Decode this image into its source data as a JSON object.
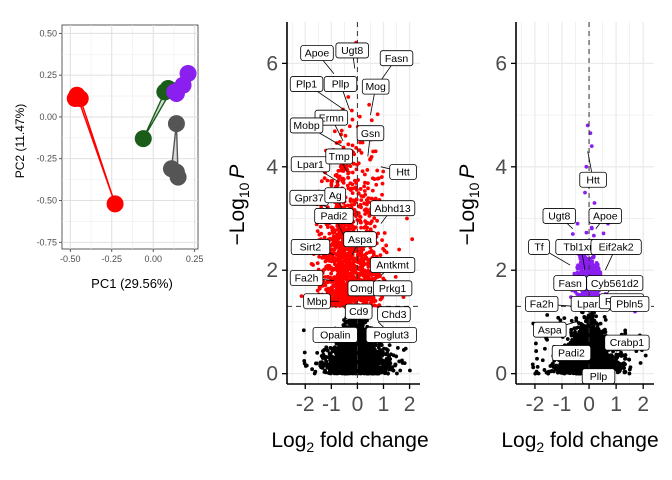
{
  "chart_data": [
    {
      "type": "scatter",
      "name": "pca",
      "xlabel": "PC1 (29.56%)",
      "ylabel": "PC2 (11.47%)",
      "xlim": [
        -0.55,
        0.27
      ],
      "ylim": [
        -0.79,
        0.55
      ],
      "xticks": [
        -0.5,
        -0.25,
        0.0,
        0.25
      ],
      "xtick_labels": [
        "-0.50",
        "-0.25",
        "0.00",
        "0.25"
      ],
      "yticks": [
        0.5,
        0.25,
        0.0,
        -0.25,
        -0.5,
        -0.75
      ],
      "ytick_labels": [
        "0.50",
        "0.25",
        "0.00",
        "-0.25",
        "-0.50",
        "-0.75"
      ],
      "grid": true,
      "groups": [
        {
          "color": "#ff0000",
          "points": [
            [
              -0.46,
              0.13
            ],
            [
              -0.47,
              0.11
            ],
            [
              -0.44,
              0.11
            ],
            [
              -0.23,
              -0.52
            ]
          ]
        },
        {
          "color": "#1a5c1a",
          "points": [
            [
              -0.06,
              -0.13
            ],
            [
              0.07,
              0.15
            ],
            [
              0.09,
              0.17
            ],
            [
              0.11,
              0.16
            ]
          ]
        },
        {
          "color": "#8a1ff0",
          "points": [
            [
              0.13,
              0.15
            ],
            [
              0.14,
              0.14
            ],
            [
              0.18,
              0.19
            ],
            [
              0.21,
              0.26
            ]
          ]
        },
        {
          "color": "#555555",
          "points": [
            [
              0.14,
              -0.04
            ],
            [
              0.11,
              -0.31
            ],
            [
              0.14,
              -0.33
            ],
            [
              0.15,
              -0.36
            ]
          ]
        }
      ]
    },
    {
      "type": "scatter",
      "name": "volcano-1",
      "xlabel_base": "Log",
      "xlabel_sub": "2",
      "xlabel_rest": " fold change",
      "ylabel_pre": "−Log",
      "ylabel_sub": "10",
      "ylabel_var": "P",
      "xlim": [
        -2.7,
        2.4
      ],
      "ylim": [
        -0.2,
        6.8
      ],
      "xticks": [
        -2,
        -1,
        0,
        1,
        2
      ],
      "xtick_labels": [
        "-2",
        "-1",
        "0",
        "1",
        "2"
      ],
      "yticks": [
        0,
        2,
        4,
        6
      ],
      "ytick_labels": [
        "0",
        "2",
        "4",
        "6"
      ],
      "vline": 0,
      "hline": 1.3,
      "highlight_color": "#ff0000",
      "labels": [
        {
          "text": "Apoe",
          "x": -1.55,
          "y": 6.2,
          "px": -0.9,
          "py": 5.8
        },
        {
          "text": "Ugt8",
          "x": -0.2,
          "y": 6.25,
          "px": -0.1,
          "py": 5.9
        },
        {
          "text": "Fasn",
          "x": 1.5,
          "y": 6.1,
          "px": 0.8,
          "py": 5.6
        },
        {
          "text": "Plp1",
          "x": -1.95,
          "y": 5.6,
          "px": -0.5,
          "py": 5.1
        },
        {
          "text": "Pllp",
          "x": -0.65,
          "y": 5.6,
          "px": -0.3,
          "py": 5.1
        },
        {
          "text": "Mog",
          "x": 0.7,
          "y": 5.55,
          "px": 0.5,
          "py": 5.0
        },
        {
          "text": "Ermn",
          "x": -1.0,
          "y": 4.95,
          "px": -0.55,
          "py": 4.5
        },
        {
          "text": "Mobp",
          "x": -1.95,
          "y": 4.8,
          "px": -0.6,
          "py": 4.4
        },
        {
          "text": "Gsn",
          "x": 0.5,
          "y": 4.65,
          "px": 0.4,
          "py": 4.2
        },
        {
          "text": "Lpar1",
          "x": -1.8,
          "y": 4.05,
          "px": -0.7,
          "py": 3.7
        },
        {
          "text": "Tmp",
          "x": -0.7,
          "y": 4.2,
          "px": -0.4,
          "py": 3.9
        },
        {
          "text": "Htt",
          "x": 1.75,
          "y": 3.9,
          "px": 0.9,
          "py": 4.0
        },
        {
          "text": "Gpr37",
          "x": -1.85,
          "y": 3.4,
          "px": -0.75,
          "py": 3.1
        },
        {
          "text": "Ag",
          "x": -0.85,
          "y": 3.45,
          "px": -0.5,
          "py": 3.1
        },
        {
          "text": "Abhd13",
          "x": 1.35,
          "y": 3.2,
          "px": 0.9,
          "py": 2.9
        },
        {
          "text": "Padi2",
          "x": -0.9,
          "y": 3.05,
          "px": -0.45,
          "py": 2.6
        },
        {
          "text": "Aspa",
          "x": 0.1,
          "y": 2.6,
          "px": -0.2,
          "py": 2.3
        },
        {
          "text": "Sirt2",
          "x": -1.8,
          "y": 2.45,
          "px": -0.9,
          "py": 2.3
        },
        {
          "text": "Antkmt",
          "x": 1.35,
          "y": 2.1,
          "px": 0.9,
          "py": 1.9
        },
        {
          "text": "Fa2h",
          "x": -1.95,
          "y": 1.85,
          "px": -0.9,
          "py": 1.8
        },
        {
          "text": "Omg",
          "x": 0.15,
          "y": 1.65,
          "px": -0.1,
          "py": 1.5
        },
        {
          "text": "Prkg1",
          "x": 1.35,
          "y": 1.65,
          "px": 0.9,
          "py": 1.5
        },
        {
          "text": "Mbp",
          "x": -1.55,
          "y": 1.4,
          "px": -0.7,
          "py": 1.4
        },
        {
          "text": "Cd9",
          "x": 0.05,
          "y": 1.2,
          "px": -0.1,
          "py": 1.3
        },
        {
          "text": "Chd3",
          "x": 1.4,
          "y": 1.15,
          "px": 1.0,
          "py": 1.2
        },
        {
          "text": "Opalin",
          "x": -0.85,
          "y": 0.75,
          "px": -0.4,
          "py": 1.0
        },
        {
          "text": "Poglut3",
          "x": 1.3,
          "y": 0.75,
          "px": 0.8,
          "py": 1.0
        }
      ]
    },
    {
      "type": "scatter",
      "name": "volcano-2",
      "xlabel_base": "Log",
      "xlabel_sub": "2",
      "xlabel_rest": " fold change",
      "ylabel_pre": "−Log",
      "ylabel_sub": "10",
      "ylabel_var": "P",
      "xlim": [
        -2.7,
        2.4
      ],
      "ylim": [
        -0.2,
        6.8
      ],
      "xticks": [
        -2,
        -1,
        0,
        1,
        2
      ],
      "xtick_labels": [
        "-2",
        "-1",
        "0",
        "1",
        "2"
      ],
      "yticks": [
        0,
        2,
        4,
        6
      ],
      "ytick_labels": [
        "0",
        "2",
        "4",
        "6"
      ],
      "vline": 0,
      "hline": 1.3,
      "highlight_color": "#8a1ff0",
      "labels": [
        {
          "text": "Htt",
          "x": 0.15,
          "y": 3.75,
          "px": -0.05,
          "py": 4.3
        },
        {
          "text": "Ugt8",
          "x": -1.1,
          "y": 3.05,
          "px": -0.6,
          "py": 2.8
        },
        {
          "text": "Apoe",
          "x": 0.6,
          "y": 3.05,
          "px": 0.25,
          "py": 2.8
        },
        {
          "text": "Tf",
          "x": -1.85,
          "y": 2.45,
          "px": -0.7,
          "py": 2.1
        },
        {
          "text": "Tbl1xr1",
          "x": -0.3,
          "y": 2.45,
          "px": -0.15,
          "py": 2.0
        },
        {
          "text": "Eif2ak2",
          "x": 1.0,
          "y": 2.45,
          "px": 0.6,
          "py": 2.0
        },
        {
          "text": "Fasn",
          "x": -0.7,
          "y": 1.75,
          "px": -0.3,
          "py": 1.6
        },
        {
          "text": "Cyb561d2",
          "x": 0.95,
          "y": 1.75,
          "px": 0.6,
          "py": 1.5
        },
        {
          "text": "Fa2h",
          "x": -1.75,
          "y": 1.35,
          "px": -0.5,
          "py": 1.3
        },
        {
          "text": "Lpar1",
          "x": 0.05,
          "y": 1.35,
          "px": 0.0,
          "py": 1.4
        },
        {
          "text": "Rbfox1",
          "x": 1.2,
          "y": 1.4,
          "px": 0.8,
          "py": 1.4
        },
        {
          "text": "Pbln5",
          "x": 1.5,
          "y": 1.35,
          "px": 1.0,
          "py": 1.3
        },
        {
          "text": "Aspa",
          "x": -1.45,
          "y": 0.85,
          "px": -0.5,
          "py": 1.0
        },
        {
          "text": "Padi2",
          "x": -0.65,
          "y": 0.4,
          "px": -0.3,
          "py": 0.7
        },
        {
          "text": "Crabp1",
          "x": 1.4,
          "y": 0.6,
          "px": 0.6,
          "py": 0.6
        },
        {
          "text": "Pllp",
          "x": 0.35,
          "y": -0.05,
          "px": 0.15,
          "py": 0.35
        }
      ]
    }
  ]
}
